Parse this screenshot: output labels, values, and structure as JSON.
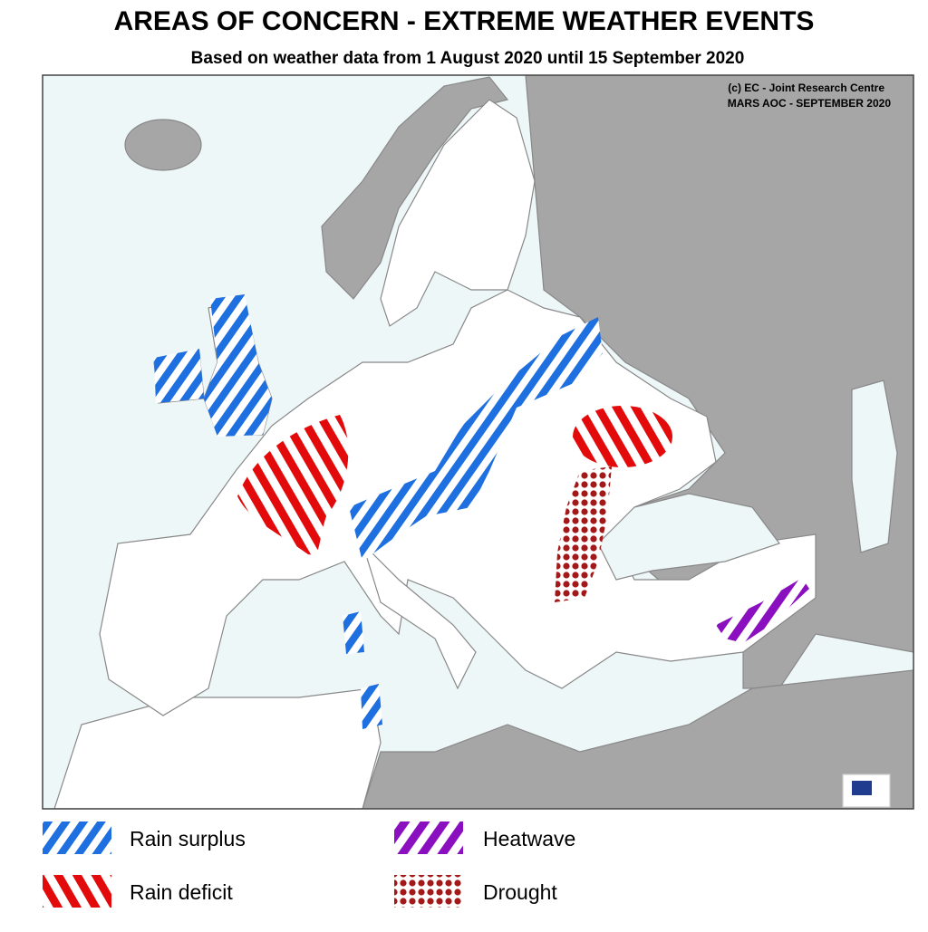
{
  "header": {
    "title": "AREAS OF CONCERN - EXTREME WEATHER EVENTS",
    "subtitle": "Based on weather data from 1 August 2020 until 15 September 2020"
  },
  "credits": [
    "(c) EC - Joint Research Centre",
    "MARS AOC - SEPTEMBER 2020"
  ],
  "legend": [
    {
      "label": "Rain surplus"
    },
    {
      "label": "Heatwave"
    },
    {
      "label": "Rain deficit"
    },
    {
      "label": "Drought"
    }
  ]
}
